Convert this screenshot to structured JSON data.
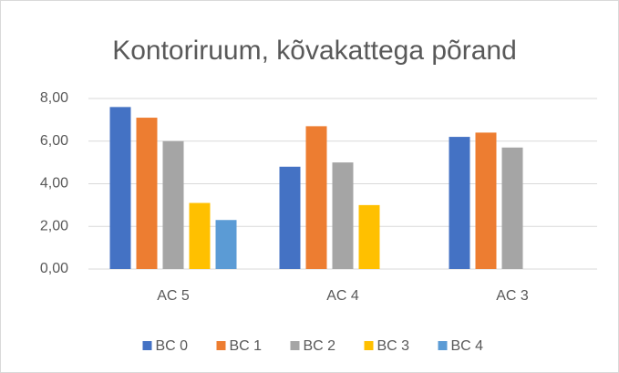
{
  "chart_data": {
    "type": "bar",
    "title": "Kontoriruum, kõvakattega põrand",
    "categories": [
      "AC 5",
      "AC 4",
      "AC 3"
    ],
    "series": [
      {
        "name": "BC 0",
        "color": "#4472c4",
        "values": [
          7.6,
          4.8,
          6.2
        ]
      },
      {
        "name": "BC 1",
        "color": "#ed7d31",
        "values": [
          7.1,
          6.7,
          6.4
        ]
      },
      {
        "name": "BC 2",
        "color": "#a5a5a5",
        "values": [
          6.0,
          5.0,
          5.7
        ]
      },
      {
        "name": "BC 3",
        "color": "#ffc000",
        "values": [
          3.1,
          3.0,
          null
        ]
      },
      {
        "name": "BC 4",
        "color": "#5b9bd5",
        "values": [
          2.3,
          null,
          null
        ]
      }
    ],
    "ylim": [
      0,
      8
    ],
    "yticks": [
      {
        "value": 0,
        "label": "0,00"
      },
      {
        "value": 2,
        "label": "2,00"
      },
      {
        "value": 4,
        "label": "4,00"
      },
      {
        "value": 6,
        "label": "6,00"
      },
      {
        "value": 8,
        "label": "8,00"
      }
    ],
    "grid": true,
    "legend": "bottom"
  }
}
